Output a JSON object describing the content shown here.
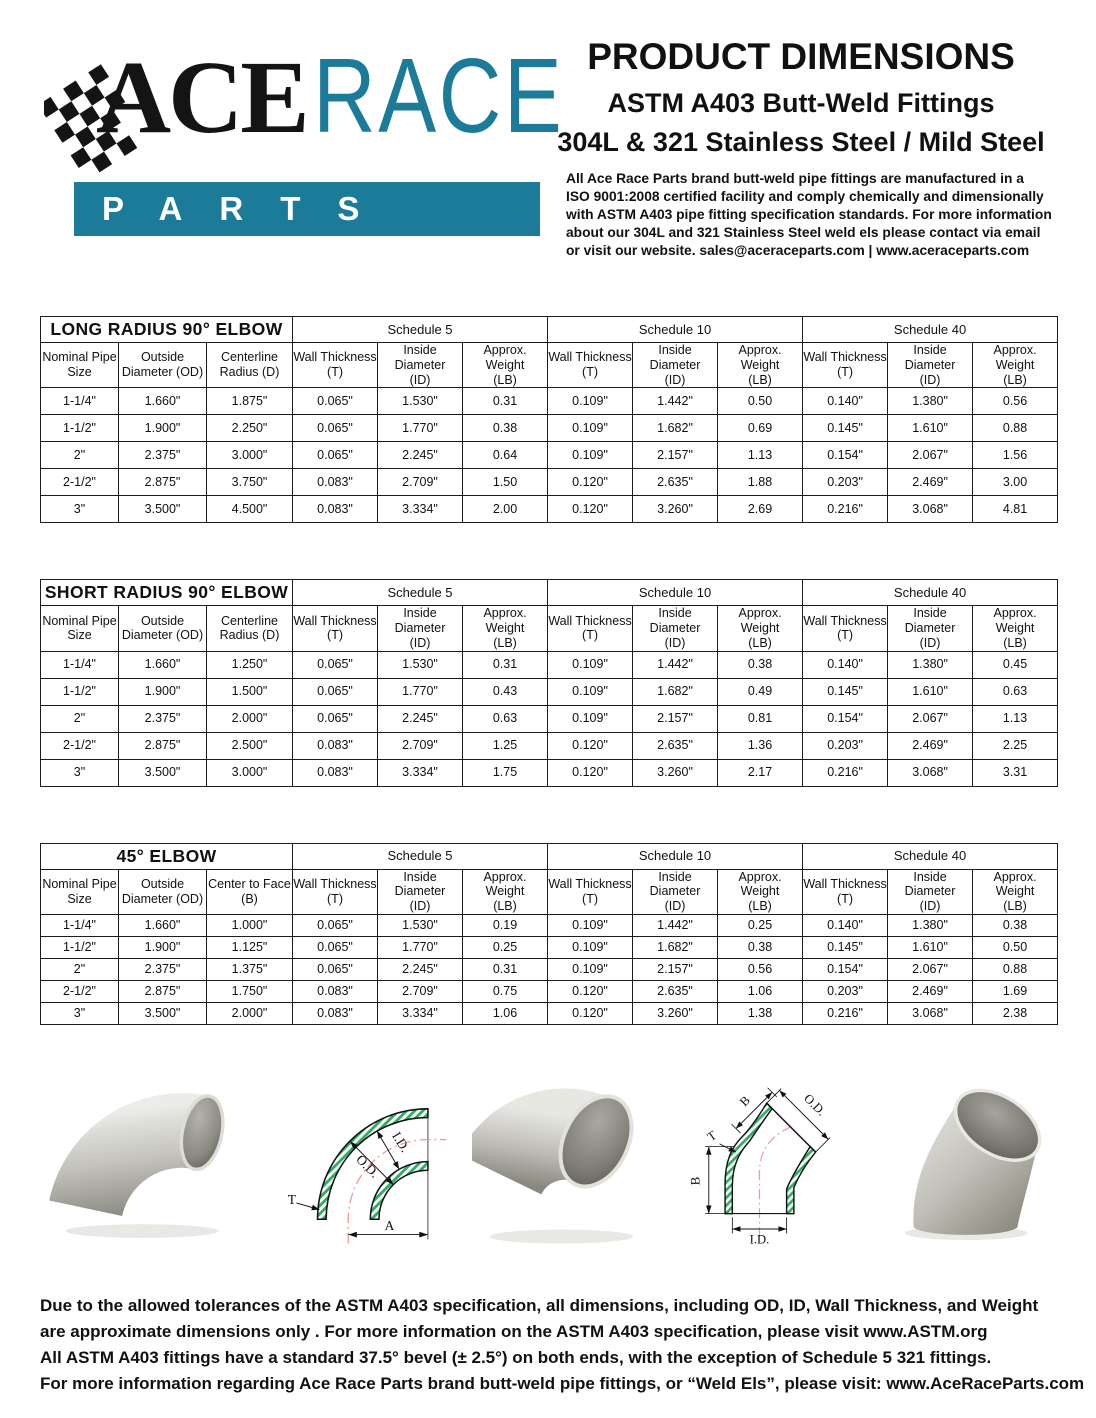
{
  "logo": {
    "ace": "ACE",
    "race": "RACE",
    "parts": "PARTS"
  },
  "header": {
    "title": "PRODUCT DIMENSIONS",
    "subtitle1": "ASTM A403 Butt-Weld Fittings",
    "subtitle2": "304L & 321 Stainless Steel / Mild Steel",
    "intro_lines": [
      "All Ace Race Parts brand butt-weld pipe fittings are manufactured in a",
      "ISO 9001:2008 certified facility and comply chemically and dimensionally",
      "with ASTM A403 pipe fitting specification standards. For more information",
      "about our 304L and 321 Stainless Steel weld els please contact via email",
      "or visit our website. sales@aceraceparts.com | www.aceraceparts.com"
    ]
  },
  "colors": {
    "brand_teal": "#1c7b99",
    "hatch_green": "#2fae62",
    "centerline_red": "#f09c9c"
  },
  "tables": [
    {
      "title": "LONG RADIUS 90° ELBOW",
      "schedules": [
        "Schedule 5",
        "Schedule 10",
        "Schedule 40"
      ],
      "left_columns": [
        [
          "Nominal Pipe",
          "Size"
        ],
        [
          "Outside",
          "Diameter (OD)"
        ],
        [
          "Centerline",
          "Radius (D)"
        ]
      ],
      "sub_columns": [
        [
          "Wall Thickness",
          "(T)"
        ],
        [
          "Inside Diameter",
          "(ID)"
        ],
        [
          "Approx. Weight",
          "(LB)"
        ]
      ],
      "rows": [
        [
          "1-1/4\"",
          "1.660\"",
          "1.875\"",
          "0.065\"",
          "1.530\"",
          "0.31",
          "0.109\"",
          "1.442\"",
          "0.50",
          "0.140\"",
          "1.380\"",
          "0.56"
        ],
        [
          "1-1/2\"",
          "1.900\"",
          "2.250\"",
          "0.065\"",
          "1.770\"",
          "0.38",
          "0.109\"",
          "1.682\"",
          "0.69",
          "0.145\"",
          "1.610\"",
          "0.88"
        ],
        [
          "2\"",
          "2.375\"",
          "3.000\"",
          "0.065\"",
          "2.245\"",
          "0.64",
          "0.109\"",
          "2.157\"",
          "1.13",
          "0.154\"",
          "2.067\"",
          "1.56"
        ],
        [
          "2-1/2\"",
          "2.875\"",
          "3.750\"",
          "0.083\"",
          "2.709\"",
          "1.50",
          "0.120\"",
          "2.635\"",
          "1.88",
          "0.203\"",
          "2.469\"",
          "3.00"
        ],
        [
          "3\"",
          "3.500\"",
          "4.500\"",
          "0.083\"",
          "3.334\"",
          "2.00",
          "0.120\"",
          "3.260\"",
          "2.69",
          "0.216\"",
          "3.068\"",
          "4.81"
        ]
      ]
    },
    {
      "title": "SHORT RADIUS 90° ELBOW",
      "schedules": [
        "Schedule 5",
        "Schedule 10",
        "Schedule 40"
      ],
      "left_columns": [
        [
          "Nominal Pipe",
          "Size"
        ],
        [
          "Outside",
          "Diameter (OD)"
        ],
        [
          "Centerline",
          "Radius (D)"
        ]
      ],
      "sub_columns": [
        [
          "Wall Thickness",
          "(T)"
        ],
        [
          "Inside Diameter",
          "(ID)"
        ],
        [
          "Approx. Weight",
          "(LB)"
        ]
      ],
      "rows": [
        [
          "1-1/4\"",
          "1.660\"",
          "1.250\"",
          "0.065\"",
          "1.530\"",
          "0.31",
          "0.109\"",
          "1.442\"",
          "0.38",
          "0.140\"",
          "1.380\"",
          "0.45"
        ],
        [
          "1-1/2\"",
          "1.900\"",
          "1.500\"",
          "0.065\"",
          "1.770\"",
          "0.43",
          "0.109\"",
          "1.682\"",
          "0.49",
          "0.145\"",
          "1.610\"",
          "0.63"
        ],
        [
          "2\"",
          "2.375\"",
          "2.000\"",
          "0.065\"",
          "2.245\"",
          "0.63",
          "0.109\"",
          "2.157\"",
          "0.81",
          "0.154\"",
          "2.067\"",
          "1.13"
        ],
        [
          "2-1/2\"",
          "2.875\"",
          "2.500\"",
          "0.083\"",
          "2.709\"",
          "1.25",
          "0.120\"",
          "2.635\"",
          "1.36",
          "0.203\"",
          "2.469\"",
          "2.25"
        ],
        [
          "3\"",
          "3.500\"",
          "3.000\"",
          "0.083\"",
          "3.334\"",
          "1.75",
          "0.120\"",
          "3.260\"",
          "2.17",
          "0.216\"",
          "3.068\"",
          "3.31"
        ]
      ]
    },
    {
      "title": "45° ELBOW",
      "schedules": [
        "Schedule 5",
        "Schedule 10",
        "Schedule 40"
      ],
      "left_columns": [
        [
          "Nominal Pipe",
          "Size"
        ],
        [
          "Outside",
          "Diameter (OD)"
        ],
        [
          "Center to Face",
          "(B)"
        ]
      ],
      "sub_columns": [
        [
          "Wall Thickness",
          "(T)"
        ],
        [
          "Inside Diameter",
          "(ID)"
        ],
        [
          "Approx. Weight",
          "(LB)"
        ]
      ],
      "rows": [
        [
          "1-1/4\"",
          "1.660\"",
          "1.000\"",
          "0.065\"",
          "1.530\"",
          "0.19",
          "0.109\"",
          "1.442\"",
          "0.25",
          "0.140\"",
          "1.380\"",
          "0.38"
        ],
        [
          "1-1/2\"",
          "1.900\"",
          "1.125\"",
          "0.065\"",
          "1.770\"",
          "0.25",
          "0.109\"",
          "1.682\"",
          "0.38",
          "0.145\"",
          "1.610\"",
          "0.50"
        ],
        [
          "2\"",
          "2.375\"",
          "1.375\"",
          "0.065\"",
          "2.245\"",
          "0.31",
          "0.109\"",
          "2.157\"",
          "0.56",
          "0.154\"",
          "2.067\"",
          "0.88"
        ],
        [
          "2-1/2\"",
          "2.875\"",
          "1.750\"",
          "0.083\"",
          "2.709\"",
          "0.75",
          "0.120\"",
          "2.635\"",
          "1.06",
          "0.203\"",
          "2.469\"",
          "1.69"
        ],
        [
          "3\"",
          "3.500\"",
          "2.000\"",
          "0.083\"",
          "3.334\"",
          "1.06",
          "0.120\"",
          "3.260\"",
          "1.38",
          "0.216\"",
          "3.068\"",
          "2.38"
        ]
      ]
    }
  ],
  "figures": {
    "drawing_90": {
      "t": "T",
      "od": "O.D.",
      "id": "I.D.",
      "a": "A"
    },
    "drawing_45": {
      "b_top": "B",
      "od": "O.D.",
      "t": "T",
      "b_left": "B",
      "id": "I.D."
    }
  },
  "footer": {
    "lines": [
      "Due to the allowed tolerances of the ASTM A403 specification, all dimensions, including OD, ID, Wall Thickness, and Weight",
      "are approximate dimensions only . For more information on the ASTM A403 specification, please visit www.ASTM.org",
      "All ASTM A403 fittings have a standard 37.5° bevel (± 2.5°) on both ends, with the exception of Schedule 5 321 fittings.",
      "For more information regarding Ace Race Parts brand butt-weld pipe fittings, or “Weld Els”, please visit: www.AceRaceParts.com"
    ]
  }
}
